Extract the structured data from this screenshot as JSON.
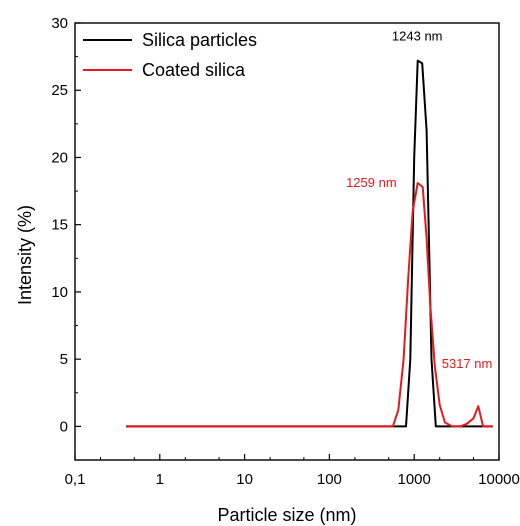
{
  "chart_data": {
    "type": "line",
    "xlabel": "Particle size (nm)",
    "ylabel": "Intensity (%)",
    "xscale": "log",
    "xlim": [
      0.1,
      10000
    ],
    "ylim": [
      -2.5,
      30
    ],
    "x_ticks": [
      "0,1",
      "1",
      "10",
      "100",
      "1000",
      "10000"
    ],
    "y_ticks": [
      "0",
      "5",
      "10",
      "15",
      "20",
      "25",
      "30"
    ],
    "grid": false,
    "legend_position": "top-left",
    "series": [
      {
        "name": "Silica particles",
        "color": "#000000",
        "x": [
          0.4,
          700,
          800,
          900,
          1000,
          1100,
          1243,
          1400,
          1600,
          1800,
          2100,
          8500
        ],
        "y": [
          0,
          0,
          0,
          5,
          20,
          27.2,
          27,
          22,
          5,
          0,
          0,
          0
        ]
      },
      {
        "name": "Coated silica",
        "color": "#e41a1c",
        "x": [
          0.4,
          560,
          650,
          750,
          850,
          960,
          1100,
          1259,
          1400,
          1550,
          1750,
          2000,
          2300,
          2800,
          3500,
          4200,
          5000,
          5700,
          6500,
          8500
        ],
        "y": [
          0,
          0,
          1.2,
          5,
          11,
          16,
          18.1,
          17.8,
          14,
          9,
          4.5,
          1.6,
          0.3,
          0,
          0,
          0.2,
          0.6,
          1.5,
          0,
          0
        ]
      }
    ],
    "annotations": [
      {
        "text": "1243 nm",
        "x": 1243,
        "y": 27.2,
        "color": "#000000"
      },
      {
        "text": "1259 nm",
        "x": 1259,
        "y": 18.1,
        "color": "#e41a1c"
      },
      {
        "text": "5317 nm",
        "x": 5317,
        "y": 1.5,
        "color": "#e41a1c"
      }
    ]
  }
}
